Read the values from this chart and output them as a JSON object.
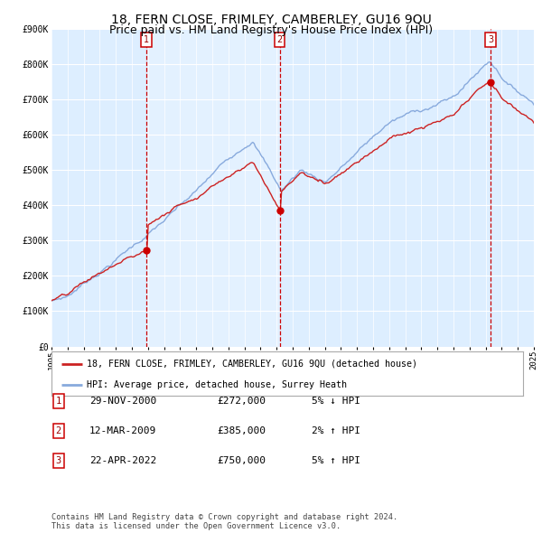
{
  "title": "18, FERN CLOSE, FRIMLEY, CAMBERLEY, GU16 9QU",
  "subtitle": "Price paid vs. HM Land Registry's House Price Index (HPI)",
  "x_start_year": 1995,
  "x_end_year": 2025,
  "y_min": 0,
  "y_max": 900000,
  "y_ticks": [
    0,
    100000,
    200000,
    300000,
    400000,
    500000,
    600000,
    700000,
    800000,
    900000
  ],
  "y_tick_labels": [
    "£0",
    "£100K",
    "£200K",
    "£300K",
    "£400K",
    "£500K",
    "£600K",
    "£700K",
    "£800K",
    "£900K"
  ],
  "sale_dates_num": [
    2000.91,
    2009.19,
    2022.3
  ],
  "sale_prices": [
    272000,
    385000,
    750000
  ],
  "sale_labels": [
    "1",
    "2",
    "3"
  ],
  "vline_color": "#cc0000",
  "sale_dot_color": "#cc0000",
  "red_line_color": "#cc2222",
  "blue_line_color": "#88aadd",
  "bg_color": "#ddeeff",
  "grid_color": "#ffffff",
  "legend_line1": "18, FERN CLOSE, FRIMLEY, CAMBERLEY, GU16 9QU (detached house)",
  "legend_line2": "HPI: Average price, detached house, Surrey Heath",
  "table_rows": [
    [
      "1",
      "29-NOV-2000",
      "£272,000",
      "5% ↓ HPI"
    ],
    [
      "2",
      "12-MAR-2009",
      "£385,000",
      "2% ↑ HPI"
    ],
    [
      "3",
      "22-APR-2022",
      "£750,000",
      "5% ↑ HPI"
    ]
  ],
  "footer": "Contains HM Land Registry data © Crown copyright and database right 2024.\nThis data is licensed under the Open Government Licence v3.0.",
  "title_fontsize": 10,
  "subtitle_fontsize": 9,
  "tick_fontsize": 7,
  "label_fontsize": 8
}
